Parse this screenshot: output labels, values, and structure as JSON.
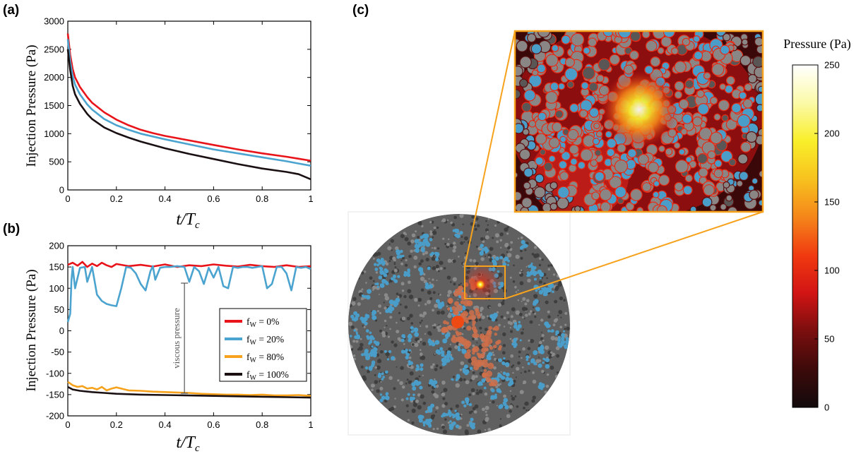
{
  "panels": {
    "a": {
      "label": "(a)"
    },
    "b": {
      "label": "(b)"
    },
    "c": {
      "label": "(c)"
    }
  },
  "chart_data": [
    {
      "id": "a",
      "type": "line",
      "title": "",
      "xlabel": "t/T",
      "xlabel_sub": "c",
      "ylabel": "Injection Pressure (Pa)",
      "xlim": [
        0,
        1
      ],
      "ylim": [
        0,
        3000
      ],
      "xticks": [
        0,
        0.2,
        0.4,
        0.6,
        0.8,
        1
      ],
      "xtick_labels": [
        "0",
        "0.2",
        "0.4",
        "0.6",
        "0.8",
        "1"
      ],
      "yticks": [
        0,
        500,
        1000,
        1500,
        2000,
        2500,
        3000
      ],
      "ytick_labels": [
        "0",
        "500",
        "1000",
        "1500",
        "2000",
        "2500",
        "3000"
      ],
      "x": [
        0,
        0.01,
        0.02,
        0.03,
        0.05,
        0.08,
        0.1,
        0.15,
        0.2,
        0.25,
        0.3,
        0.35,
        0.4,
        0.5,
        0.6,
        0.7,
        0.8,
        0.9,
        0.95,
        1.0
      ],
      "series": [
        {
          "name": "fw = 0%",
          "color": "#e8141a",
          "values": [
            2780,
            2400,
            2150,
            2000,
            1830,
            1650,
            1550,
            1380,
            1250,
            1150,
            1070,
            1010,
            960,
            880,
            800,
            720,
            650,
            590,
            555,
            520
          ]
        },
        {
          "name": "fw = 20%",
          "color": "#4ba3cf",
          "values": [
            2680,
            2280,
            2020,
            1870,
            1700,
            1520,
            1430,
            1260,
            1150,
            1070,
            1000,
            950,
            900,
            810,
            720,
            650,
            580,
            510,
            470,
            430
          ]
        },
        {
          "name": "fw = 100%",
          "color": "#1a1012",
          "values": [
            2500,
            2130,
            1850,
            1700,
            1530,
            1350,
            1260,
            1110,
            1010,
            930,
            860,
            800,
            740,
            640,
            550,
            460,
            380,
            320,
            280,
            190
          ]
        }
      ]
    },
    {
      "id": "b",
      "type": "line",
      "title": "",
      "xlabel": "t/T",
      "xlabel_sub": "c",
      "ylabel": "Injection Pressure (Pa)",
      "xlim": [
        0,
        1
      ],
      "ylim": [
        -200,
        200
      ],
      "xticks": [
        0,
        0.2,
        0.4,
        0.6,
        0.8,
        1
      ],
      "xtick_labels": [
        "0",
        "0.2",
        "0.4",
        "0.6",
        "0.8",
        "1"
      ],
      "yticks": [
        -200,
        -150,
        -100,
        -50,
        0,
        50,
        100,
        150,
        200
      ],
      "ytick_labels": [
        "-200",
        "-150",
        "-100",
        "-50",
        "0",
        "50",
        "100",
        "150",
        "200"
      ],
      "legend_position": "center-right",
      "annotation": {
        "text": "viscous pressure",
        "x": 0.48,
        "y_from": -147,
        "y_to": 112
      },
      "series": [
        {
          "name": "fw = 0%",
          "label_main": "f",
          "label_sub": "W",
          "label_rest": " = 0%",
          "color": "#e8141a",
          "x": [
            0,
            0.02,
            0.04,
            0.06,
            0.08,
            0.1,
            0.12,
            0.14,
            0.16,
            0.18,
            0.2,
            0.25,
            0.3,
            0.35,
            0.4,
            0.45,
            0.5,
            0.55,
            0.6,
            0.65,
            0.7,
            0.75,
            0.8,
            0.85,
            0.9,
            0.95,
            1.0
          ],
          "values": [
            155,
            160,
            153,
            162,
            150,
            158,
            152,
            160,
            154,
            150,
            157,
            152,
            155,
            151,
            156,
            150,
            154,
            152,
            156,
            153,
            151,
            155,
            152,
            150,
            154,
            150,
            152
          ]
        },
        {
          "name": "fw = 20%",
          "label_main": "f",
          "label_sub": "W",
          "label_rest": " = 20%",
          "color": "#4ba3cf",
          "x": [
            0,
            0.01,
            0.015,
            0.02,
            0.03,
            0.05,
            0.07,
            0.08,
            0.1,
            0.12,
            0.14,
            0.16,
            0.18,
            0.2,
            0.22,
            0.24,
            0.26,
            0.28,
            0.3,
            0.32,
            0.34,
            0.35,
            0.36,
            0.38,
            0.4,
            0.42,
            0.45,
            0.48,
            0.5,
            0.52,
            0.54,
            0.56,
            0.58,
            0.6,
            0.62,
            0.64,
            0.66,
            0.68,
            0.7,
            0.72,
            0.74,
            0.76,
            0.78,
            0.8,
            0.82,
            0.84,
            0.86,
            0.88,
            0.9,
            0.92,
            0.94,
            0.96,
            0.98,
            1.0
          ],
          "values": [
            20,
            40,
            120,
            150,
            100,
            148,
            150,
            115,
            150,
            85,
            70,
            63,
            60,
            58,
            100,
            150,
            148,
            135,
            110,
            95,
            140,
            152,
            120,
            148,
            150,
            150,
            152,
            150,
            115,
            150,
            140,
            110,
            148,
            125,
            150,
            105,
            100,
            150,
            148,
            150,
            150,
            148,
            150,
            152,
            100,
            110,
            150,
            150,
            135,
            95,
            150,
            148,
            150,
            145
          ]
        },
        {
          "name": "fw = 80%",
          "label_main": "f",
          "label_sub": "W",
          "label_rest": " = 80%",
          "color": "#f7a21d",
          "x": [
            0,
            0.02,
            0.04,
            0.06,
            0.08,
            0.1,
            0.12,
            0.14,
            0.16,
            0.18,
            0.2,
            0.25,
            0.3,
            0.35,
            0.4,
            0.45,
            0.5,
            0.55,
            0.6,
            0.65,
            0.7,
            0.75,
            0.8,
            0.85,
            0.9,
            0.95,
            1.0
          ],
          "values": [
            -120,
            -128,
            -132,
            -130,
            -136,
            -134,
            -138,
            -132,
            -140,
            -136,
            -133,
            -140,
            -141,
            -143,
            -144,
            -145,
            -146,
            -148,
            -149,
            -150,
            -150,
            -151,
            -150,
            -152,
            -152,
            -151,
            -153
          ]
        },
        {
          "name": "fw = 100%",
          "label_main": "f",
          "label_sub": "W",
          "label_rest": " = 100%",
          "color": "#1a1012",
          "x": [
            0,
            0.02,
            0.05,
            0.1,
            0.15,
            0.2,
            0.3,
            0.4,
            0.5,
            0.6,
            0.7,
            0.8,
            0.9,
            1.0
          ],
          "values": [
            -132,
            -138,
            -141,
            -144,
            -146,
            -148,
            -150,
            -151,
            -152,
            -153,
            -154,
            -155,
            -156,
            -157
          ]
        }
      ]
    },
    {
      "id": "c",
      "type": "heatmap",
      "title": "Pressure (Pa)",
      "colorbar_range": [
        0,
        250
      ],
      "colorbar_ticks": [
        0,
        50,
        100,
        150,
        200,
        250
      ],
      "colorbar_tick_labels": [
        "0",
        "50",
        "100",
        "150",
        "200",
        "250"
      ],
      "colorbar_stops": [
        "#120a0c",
        "#3d0a0a",
        "#7a0e0e",
        "#d11414",
        "#f03a10",
        "#f5861a",
        "#f7c21e",
        "#f9ef2a",
        "#fbfaa8",
        "#ffffff"
      ],
      "inset_border_color": "#f7a21d"
    }
  ]
}
